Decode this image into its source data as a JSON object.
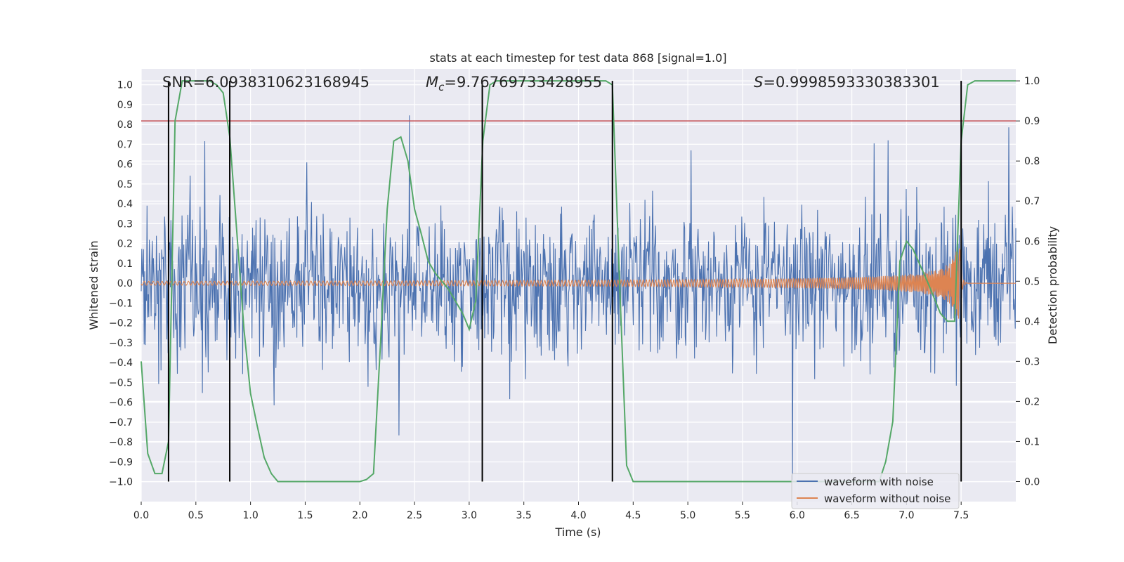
{
  "chart_data": {
    "type": "line",
    "title": "stats at each timestep for test data 868 [signal=1.0]",
    "xlabel": "Time (s)",
    "ylabel_left": "Whitened strain",
    "ylabel_right": "Detection probability",
    "xlim": [
      0.0,
      8.0
    ],
    "ylim_left": [
      -1.1,
      1.08
    ],
    "ylim_right": [
      -0.05,
      1.03
    ],
    "x_ticks": [
      0.0,
      0.5,
      1.0,
      1.5,
      2.0,
      2.5,
      3.0,
      3.5,
      4.0,
      4.5,
      5.0,
      5.5,
      6.0,
      6.5,
      7.0,
      7.5
    ],
    "x_tick_labels": [
      "0.0",
      "0.5",
      "1.0",
      "1.5",
      "2.0",
      "2.5",
      "3.0",
      "3.5",
      "4.0",
      "4.5",
      "5.0",
      "5.5",
      "6.0",
      "6.5",
      "7.0",
      "7.5"
    ],
    "y_left_ticks": [
      1.0,
      0.9,
      0.8,
      0.7,
      0.6,
      0.5,
      0.4,
      0.3,
      0.2,
      0.1,
      0.0,
      -0.1,
      -0.2,
      -0.3,
      -0.4,
      -0.5,
      -0.6,
      -0.7,
      -0.8,
      -0.9,
      -1.0
    ],
    "y_left_tick_labels": [
      "1.0",
      "0.9",
      "0.8",
      "0.7",
      "0.6",
      "0.5",
      "0.4",
      "0.3",
      "0.2",
      "0.1",
      "0.0",
      "−0.1",
      "−0.2",
      "−0.3",
      "−0.4",
      "−0.5",
      "−0.6",
      "−0.7",
      "−0.8",
      "−0.9",
      "−1.0"
    ],
    "y_right_ticks": [
      1.0,
      0.9,
      0.8,
      0.7,
      0.6,
      0.5,
      0.4,
      0.3,
      0.2,
      0.1,
      0.0
    ],
    "y_right_tick_labels": [
      "1.0",
      "0.9",
      "0.8",
      "0.7",
      "0.6",
      "0.5",
      "0.4",
      "0.3",
      "0.2",
      "0.1",
      "0.0"
    ],
    "annotations": {
      "snr": "SNR=6.0938310623168945",
      "mc_symbol": "M",
      "mc_sub": "c",
      "mc_value": "=9.76769733428955",
      "s_symbol": "S",
      "s_value": "=0.9998593330383301"
    },
    "threshold_line": {
      "axis": "right",
      "value": 0.9,
      "color": "#c44e52"
    },
    "event_lines_x": [
      0.25,
      0.81,
      3.12,
      4.31,
      7.5
    ],
    "legend": [
      {
        "label": "waveform with noise",
        "color": "#4c72b0"
      },
      {
        "label": "waveform without noise",
        "color": "#dd8452"
      }
    ],
    "series": [
      {
        "name": "waveform with noise",
        "axis": "left",
        "color": "#4c72b0",
        "description": "dense noisy whitened strain, mostly within [-0.7, 0.8]",
        "approx_range": [
          -1.0,
          1.0
        ]
      },
      {
        "name": "waveform without noise",
        "axis": "left",
        "color": "#dd8452",
        "chirp": {
          "start_time": 0.0,
          "merger_time": 7.5,
          "base_amplitude": 0.01,
          "peak_amplitude": 0.18,
          "end_time": 7.55
        }
      },
      {
        "name": "Detection probability",
        "axis": "right",
        "color": "#55a868",
        "x": [
          0.0,
          0.06,
          0.125,
          0.19,
          0.25,
          0.31,
          0.375,
          0.44,
          0.5,
          0.56,
          0.625,
          0.69,
          0.75,
          0.81,
          0.875,
          0.94,
          1.0,
          1.06,
          1.125,
          1.19,
          1.25,
          1.31,
          1.375,
          1.5,
          1.625,
          1.75,
          1.875,
          2.0,
          2.06,
          2.125,
          2.19,
          2.25,
          2.31,
          2.375,
          2.44,
          2.5,
          2.56,
          2.625,
          2.69,
          2.75,
          2.81,
          2.875,
          2.94,
          3.0,
          3.06,
          3.125,
          3.19,
          3.25,
          3.31,
          3.5,
          3.75,
          4.0,
          4.25,
          4.31,
          4.375,
          4.44,
          4.5,
          4.75,
          5.0,
          5.5,
          6.0,
          6.5,
          6.75,
          6.81,
          6.875,
          6.94,
          7.0,
          7.06,
          7.125,
          7.19,
          7.25,
          7.31,
          7.375,
          7.44,
          7.5,
          7.56,
          7.625,
          7.75,
          7.875,
          8.0
        ],
        "y": [
          0.3,
          0.07,
          0.02,
          0.02,
          0.1,
          0.9,
          1.0,
          1.0,
          1.0,
          1.0,
          1.0,
          0.99,
          0.97,
          0.86,
          0.62,
          0.38,
          0.22,
          0.14,
          0.06,
          0.02,
          0.0,
          0.0,
          0.0,
          0.0,
          0.0,
          0.0,
          0.0,
          0.0,
          0.005,
          0.02,
          0.35,
          0.68,
          0.85,
          0.86,
          0.8,
          0.68,
          0.62,
          0.55,
          0.52,
          0.5,
          0.48,
          0.45,
          0.42,
          0.38,
          0.45,
          0.85,
          0.99,
          1.0,
          1.0,
          1.0,
          1.0,
          1.0,
          1.0,
          0.99,
          0.5,
          0.04,
          0.0,
          0.0,
          0.0,
          0.0,
          0.0,
          0.0,
          0.0,
          0.05,
          0.15,
          0.55,
          0.6,
          0.58,
          0.54,
          0.5,
          0.46,
          0.42,
          0.4,
          0.4,
          0.85,
          0.99,
          1.0,
          1.0,
          1.0,
          1.0
        ]
      }
    ]
  }
}
